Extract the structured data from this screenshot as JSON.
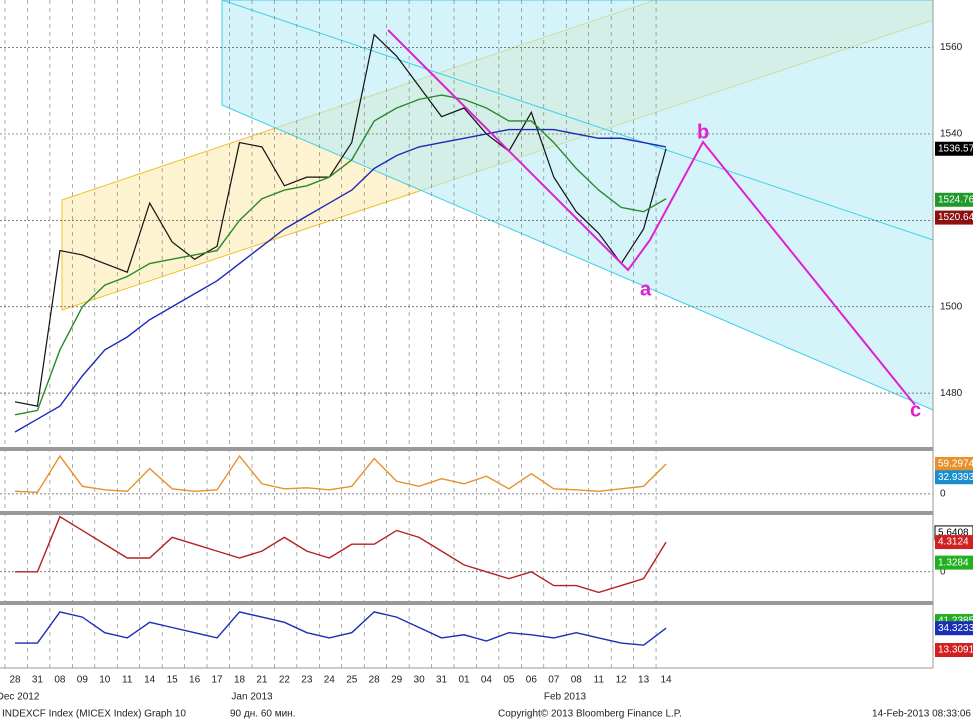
{
  "chart_data": [
    {
      "type": "line",
      "ylim": [
        1468,
        1571
      ],
      "yticks": [
        1480,
        1500,
        1520,
        1540,
        1560
      ],
      "grid": true,
      "categories": [
        "28",
        "31",
        "08",
        "09",
        "10",
        "11",
        "14",
        "15",
        "16",
        "17",
        "18",
        "21",
        "22",
        "23",
        "24",
        "25",
        "28",
        "29",
        "30",
        "31",
        "01",
        "04",
        "05",
        "06",
        "07",
        "08",
        "11",
        "12",
        "13",
        "14"
      ],
      "months": [
        "Dec 2012",
        "Jan 2013",
        "Feb 2013"
      ],
      "series": [
        {
          "name": "price",
          "color": "#111111",
          "values": [
            1478,
            1477,
            1513,
            1512,
            1510,
            1508,
            1524,
            1515,
            1511,
            1514,
            1538,
            1537,
            1528,
            1530,
            1530,
            1538,
            1563,
            1558,
            1551,
            1544,
            1546,
            1540,
            1536,
            1545,
            1530,
            1522,
            1517,
            1510,
            1518,
            1536.57
          ]
        },
        {
          "name": "ma-long",
          "color": "#1e2ab8",
          "values": [
            1471,
            1474,
            1477,
            1484,
            1490,
            1493,
            1497,
            1500,
            1503,
            1506,
            1510,
            1514,
            1518,
            1521,
            1524,
            1527,
            1532,
            1535,
            1537,
            1538,
            1539,
            1540,
            1541,
            1541,
            1541,
            1540,
            1539,
            1539,
            1538,
            1537
          ]
        },
        {
          "name": "ma-short",
          "color": "#2a8a2a",
          "values": [
            1475,
            1476,
            1490,
            1500,
            1505,
            1507,
            1510,
            1511,
            1512,
            1513,
            1520,
            1525,
            1527,
            1528,
            1530,
            1534,
            1543,
            1546,
            1548,
            1549,
            1548,
            1546,
            1543,
            1543,
            1538,
            1532,
            1527,
            1523,
            1522,
            1525
          ]
        }
      ],
      "last_labels": [
        {
          "value": 1536.57,
          "color": "#000000"
        },
        {
          "value": 1524.76,
          "color": "#1f9a2a"
        },
        {
          "value": 1520.64,
          "color": "#8b1010"
        }
      ],
      "annotations": [
        "a",
        "b",
        "c"
      ]
    },
    {
      "type": "line",
      "ylim": [
        -32,
        83
      ],
      "yticks": [
        0
      ],
      "series": [
        {
          "name": "osc",
          "color": "#e8902a",
          "values": [
            5,
            3,
            75,
            15,
            8,
            5,
            50,
            10,
            5,
            8,
            75,
            20,
            10,
            12,
            8,
            15,
            70,
            25,
            15,
            30,
            20,
            35,
            10,
            40,
            10,
            8,
            5,
            10,
            15,
            59.2974
          ]
        }
      ],
      "last_labels": [
        {
          "value": 59.2974,
          "color": "#e8902a"
        },
        {
          "value": 32.9393,
          "color": "#1a8fd0"
        }
      ]
    },
    {
      "type": "line",
      "ylim": [
        -4.1,
        8.1
      ],
      "yticks": [
        0
      ],
      "series": [
        {
          "name": "macd",
          "color": "#b22222",
          "values": [
            0,
            0,
            8,
            6,
            4,
            2,
            2,
            5,
            4,
            3,
            2,
            3,
            5,
            3,
            2,
            4,
            4,
            6,
            5,
            3,
            1,
            0,
            -1,
            0,
            -2,
            -2,
            -3,
            -2,
            -1,
            4.3124
          ]
        }
      ],
      "last_labels": [
        {
          "value": 5.6408,
          "color": "#ffffff"
        },
        {
          "value": 4.3124,
          "color": "#d02020"
        },
        {
          "value": 1.3284,
          "color": "#22b022"
        }
      ]
    },
    {
      "type": "line",
      "ylim": [
        -4,
        55.7
      ],
      "yticks": [],
      "series": [
        {
          "name": "dmi",
          "color": "#1a2fb5",
          "values": [
            20,
            20,
            50,
            45,
            30,
            25,
            40,
            35,
            30,
            25,
            50,
            45,
            40,
            30,
            25,
            30,
            50,
            45,
            35,
            25,
            28,
            22,
            30,
            28,
            25,
            30,
            25,
            20,
            18,
            34.3233
          ]
        }
      ],
      "last_labels": [
        {
          "value": 41.2385,
          "color": "#22b022"
        },
        {
          "value": 34.3233,
          "color": "#1a2fb5"
        },
        {
          "value": 13.3091,
          "color": "#d02020"
        }
      ]
    }
  ],
  "footer": {
    "left": "INDEXCF Index (MICEX Index) Graph 10",
    "period": "90 дн. 60 мин.",
    "copyright": "Copyright© 2013 Bloomberg Finance L.P.",
    "stamp": "14-Feb-2013 08:33:06"
  }
}
